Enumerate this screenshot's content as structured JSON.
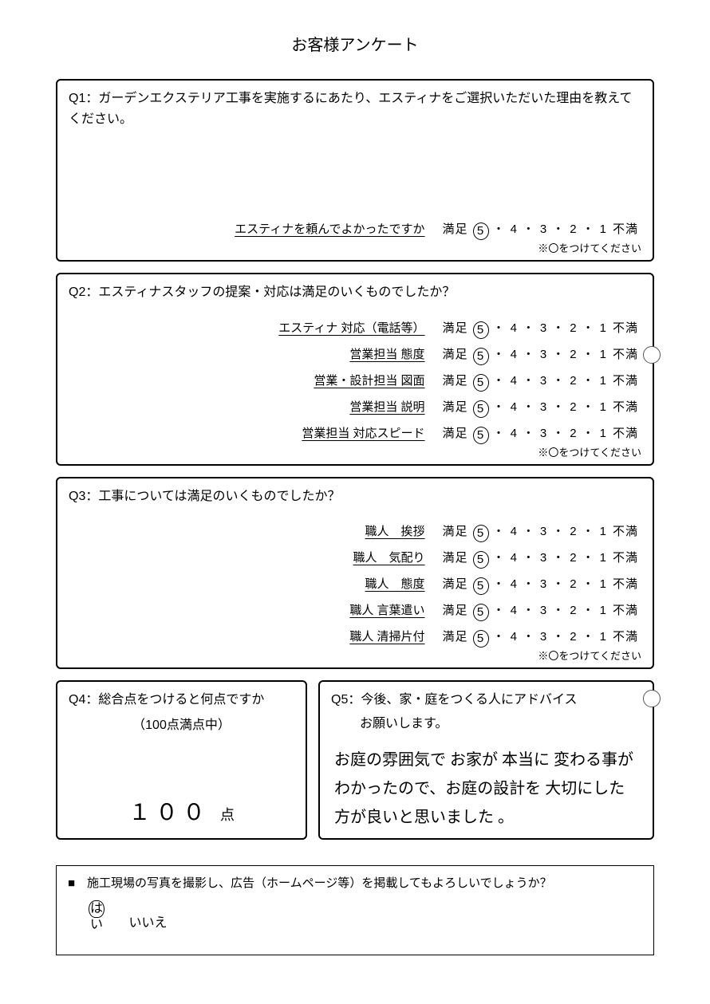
{
  "title": "お客様アンケート",
  "scale": {
    "left_word": "満足",
    "right_word": "不満",
    "numbers": [
      "5",
      "4",
      "3",
      "2",
      "1"
    ],
    "separator": "・"
  },
  "footnote": "※〇をつけてください",
  "q1": {
    "prompt": "Q1：ガーデンエクステリア工事を実施するにあたり、エスティナをご選択いただいた理由を教えてください。",
    "row_label": "エスティナを頼んでよかったですか",
    "circled": "5"
  },
  "q2": {
    "prompt": "Q2：エスティナスタッフの提案・対応は満足のいくものでしたか？",
    "rows": [
      {
        "label": "エスティナ 対応（電話等）",
        "circled": "5"
      },
      {
        "label": "営業担当 態度",
        "circled": "5"
      },
      {
        "label": "営業・設計担当 図面",
        "circled": "5"
      },
      {
        "label": "営業担当 説明",
        "circled": "5"
      },
      {
        "label": "営業担当 対応スピード",
        "circled": "5"
      }
    ]
  },
  "q3": {
    "prompt": "Q3：工事については満足のいくものでしたか？",
    "rows": [
      {
        "label": "職人　挨拶",
        "circled": "5"
      },
      {
        "label": "職人　気配り",
        "circled": "5"
      },
      {
        "label": "職人　態度",
        "circled": "5"
      },
      {
        "label": "職人 言葉遣い",
        "circled": "5"
      },
      {
        "label": "職人 清掃片付",
        "circled": "5"
      }
    ]
  },
  "q4": {
    "prompt": "Q4：総合点をつけると何点ですか",
    "sub": "（100点満点中）",
    "score_hand": "１００",
    "score_unit": "点"
  },
  "q5": {
    "prompt": "Q5：今後、家・庭をつくる人にアドバイス",
    "sub": "お願いします。",
    "answer": "お庭の雰囲気で お家が 本当に 変わる事がわかったので、お庭の設計を 大切にした方が良いと思いました 。"
  },
  "consent": {
    "prompt": "■　施工現場の写真を撮影し、広告（ホームページ等）を掲載してもよろしいでしょうか？",
    "yes": "はい",
    "no": "いいえ",
    "circled": "yes"
  }
}
